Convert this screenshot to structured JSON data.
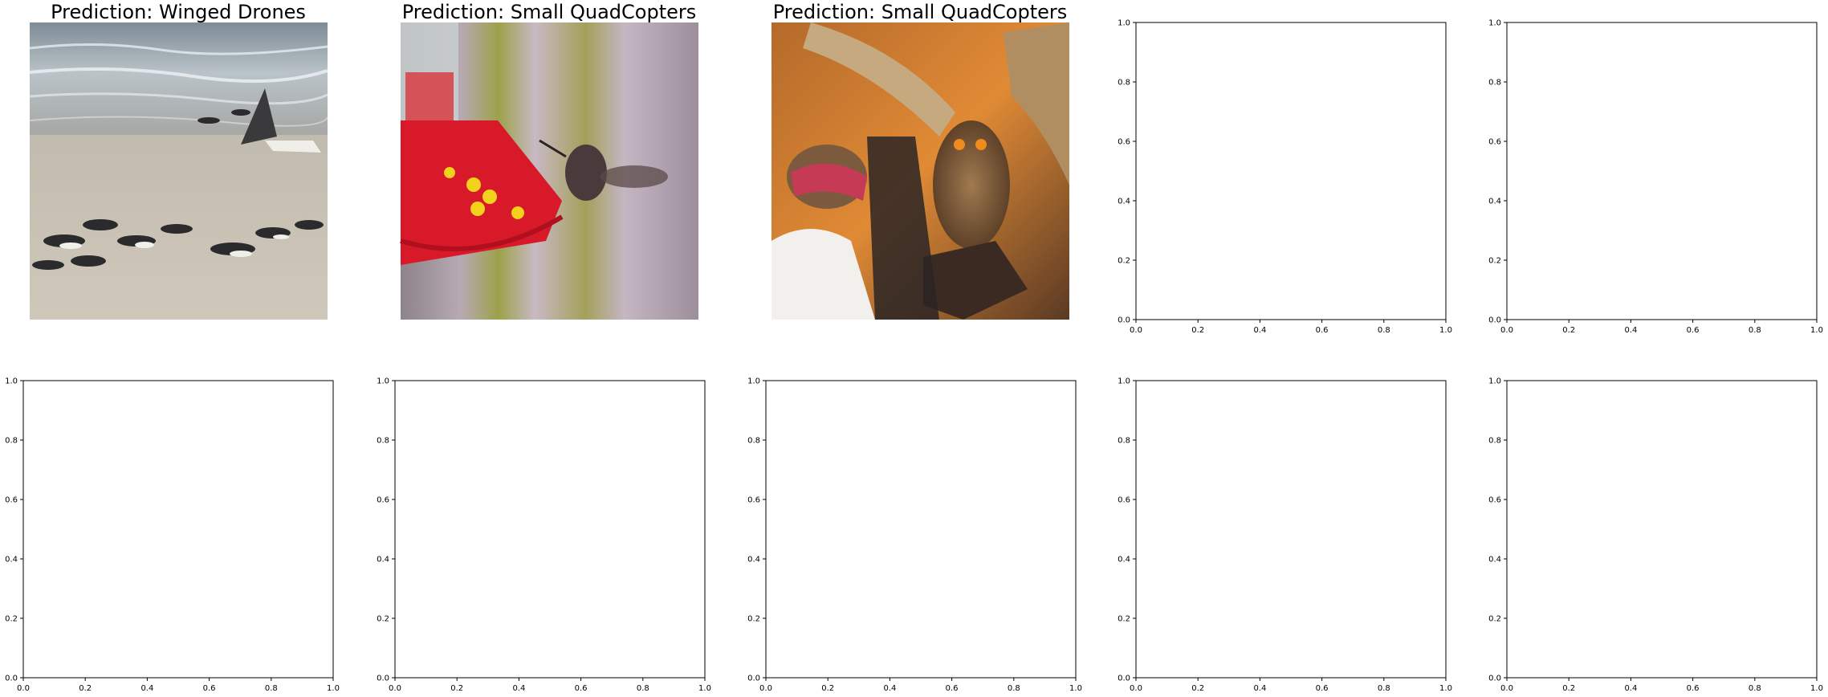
{
  "figure": {
    "rows": 2,
    "cols": 5
  },
  "chart_data": [
    {
      "type": "image",
      "title": "Prediction: Winged Drones",
      "image_content": "birds on a sandy beach",
      "axes_visible": false
    },
    {
      "type": "image",
      "title": "Prediction: Small QuadCopters",
      "image_content": "hummingbird at a red feeder",
      "axes_visible": false
    },
    {
      "type": "image",
      "title": "Prediction: Small QuadCopters",
      "image_content": "owl with spread wings on a handler's glove",
      "axes_visible": false
    },
    {
      "type": "empty",
      "title": "",
      "xlim": [
        0,
        1
      ],
      "ylim": [
        0,
        1
      ],
      "xticks": [
        "0.0",
        "0.2",
        "0.4",
        "0.6",
        "0.8",
        "1.0"
      ],
      "yticks": [
        "0.0",
        "0.2",
        "0.4",
        "0.6",
        "0.8",
        "1.0"
      ]
    },
    {
      "type": "empty",
      "title": "",
      "xlim": [
        0,
        1
      ],
      "ylim": [
        0,
        1
      ],
      "xticks": [
        "0.0",
        "0.2",
        "0.4",
        "0.6",
        "0.8",
        "1.0"
      ],
      "yticks": [
        "0.0",
        "0.2",
        "0.4",
        "0.6",
        "0.8",
        "1.0"
      ]
    },
    {
      "type": "empty",
      "title": "",
      "xlim": [
        0,
        1
      ],
      "ylim": [
        0,
        1
      ],
      "xticks": [
        "0.0",
        "0.2",
        "0.4",
        "0.6",
        "0.8",
        "1.0"
      ],
      "yticks": [
        "0.0",
        "0.2",
        "0.4",
        "0.6",
        "0.8",
        "1.0"
      ]
    },
    {
      "type": "empty",
      "title": "",
      "xlim": [
        0,
        1
      ],
      "ylim": [
        0,
        1
      ],
      "xticks": [
        "0.0",
        "0.2",
        "0.4",
        "0.6",
        "0.8",
        "1.0"
      ],
      "yticks": [
        "0.0",
        "0.2",
        "0.4",
        "0.6",
        "0.8",
        "1.0"
      ]
    },
    {
      "type": "empty",
      "title": "",
      "xlim": [
        0,
        1
      ],
      "ylim": [
        0,
        1
      ],
      "xticks": [
        "0.0",
        "0.2",
        "0.4",
        "0.6",
        "0.8",
        "1.0"
      ],
      "yticks": [
        "0.0",
        "0.2",
        "0.4",
        "0.6",
        "0.8",
        "1.0"
      ]
    },
    {
      "type": "empty",
      "title": "",
      "xlim": [
        0,
        1
      ],
      "ylim": [
        0,
        1
      ],
      "xticks": [
        "0.0",
        "0.2",
        "0.4",
        "0.6",
        "0.8",
        "1.0"
      ],
      "yticks": [
        "0.0",
        "0.2",
        "0.4",
        "0.6",
        "0.8",
        "1.0"
      ]
    },
    {
      "type": "empty",
      "title": "",
      "xlim": [
        0,
        1
      ],
      "ylim": [
        0,
        1
      ],
      "xticks": [
        "0.0",
        "0.2",
        "0.4",
        "0.6",
        "0.8",
        "1.0"
      ],
      "yticks": [
        "0.0",
        "0.2",
        "0.4",
        "0.6",
        "0.8",
        "1.0"
      ]
    }
  ]
}
